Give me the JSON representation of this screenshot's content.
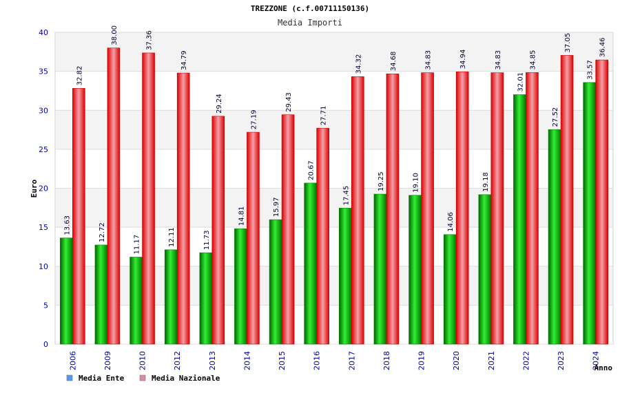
{
  "chart_data": {
    "type": "bar",
    "title": "TREZZONE (c.f.00711150136)",
    "subtitle": "Media Importi",
    "xlabel": "Anno",
    "ylabel": "Euro",
    "ylim": [
      0,
      40
    ],
    "yticks": [
      "0",
      "5",
      "10",
      "15",
      "20",
      "25",
      "30",
      "35",
      "40"
    ],
    "categories": [
      "2006",
      "2009",
      "2010",
      "2012",
      "2013",
      "2014",
      "2015",
      "2016",
      "2017",
      "2018",
      "2019",
      "2020",
      "2021",
      "2022",
      "2023",
      "2024"
    ],
    "series": [
      {
        "name": "Media Ente",
        "values": [
          13.63,
          12.72,
          11.17,
          12.11,
          11.73,
          14.81,
          15.97,
          20.67,
          17.45,
          19.25,
          19.1,
          14.06,
          19.18,
          32.01,
          27.52,
          33.57
        ],
        "labels": [
          "13.63",
          "12.72",
          "11.17",
          "12.11",
          "11.73",
          "14.81",
          "15.97",
          "20.67",
          "17.45",
          "19.25",
          "19.10",
          "14.06",
          "19.18",
          "32.01",
          "27.52",
          "33.57"
        ],
        "color": "#00aa00",
        "legend_color": "#5599ee"
      },
      {
        "name": "Media Nazionale",
        "values": [
          32.82,
          38.0,
          37.36,
          34.79,
          29.24,
          27.19,
          29.43,
          27.71,
          34.32,
          34.68,
          34.83,
          34.94,
          34.83,
          34.85,
          37.05,
          36.46
        ],
        "labels": [
          "32.82",
          "38.00",
          "37.36",
          "34.79",
          "29.24",
          "27.19",
          "29.43",
          "27.71",
          "34.32",
          "34.68",
          "34.83",
          "34.94",
          "34.83",
          "34.85",
          "37.05",
          "36.46"
        ],
        "color": "#ee1111",
        "legend_color": "#dd88aa"
      }
    ],
    "grid": true,
    "legend_position": "bottom-left"
  }
}
